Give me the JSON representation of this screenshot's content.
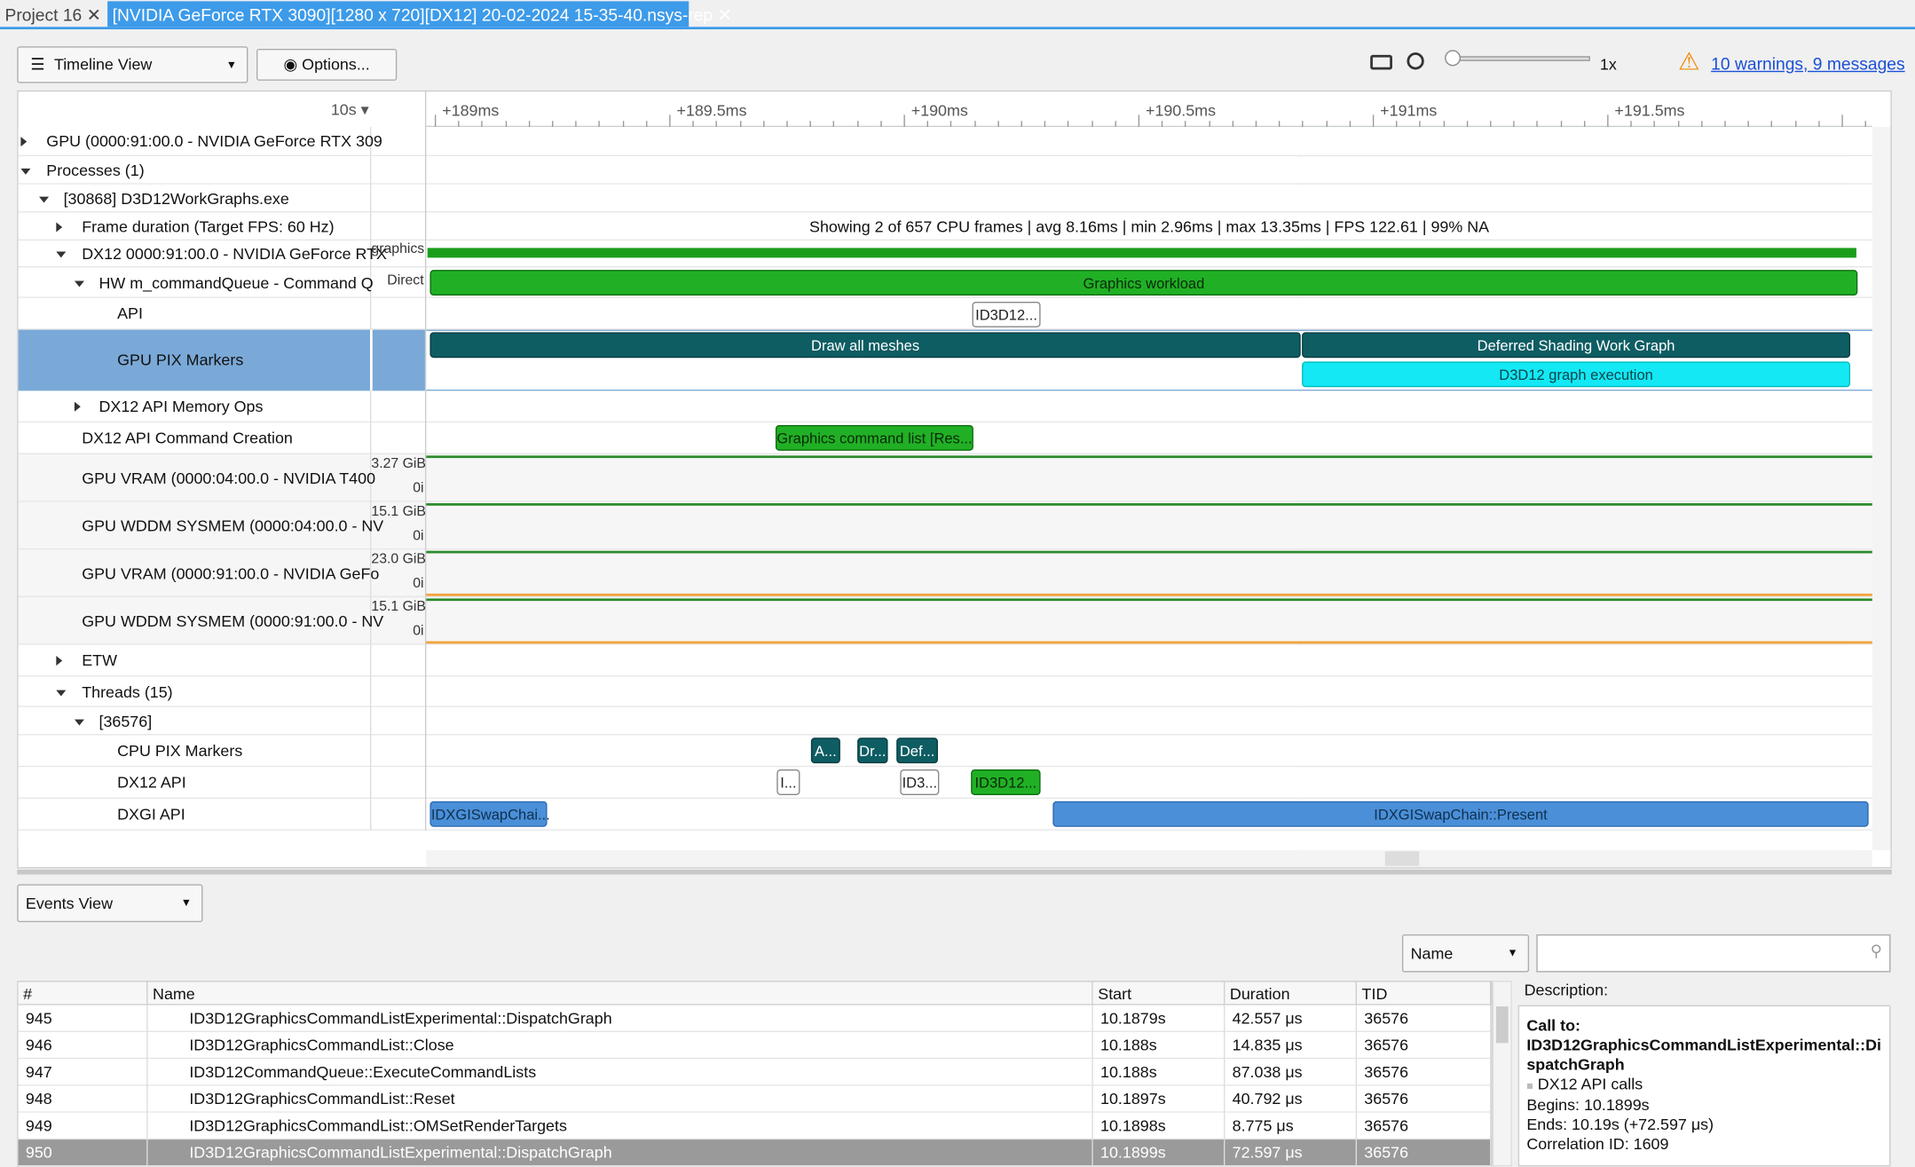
{
  "tabs": [
    "Project 16",
    "[NVIDIA GeForce RTX 3090][1280 x 720][DX12] 20-02-2024 15-35-40.nsys-rep"
  ],
  "toolbar": {
    "view": "Timeline View",
    "options": "Options...",
    "zoom": "1x",
    "warnings": "10 warnings, 9 messages"
  },
  "timeline": {
    "scale": "10s",
    "ruler": [
      "+189ms",
      "+189.5ms",
      "+190ms",
      "+190.5ms",
      "+191ms",
      "+191.5ms"
    ],
    "rows": [
      "GPU (0000:91:00.0 - NVIDIA GeForce RTX 309",
      "Processes (1)",
      "[30868] D3D12WorkGraphs.exe",
      "Frame duration (Target FPS: 60 Hz)",
      "DX12 0000:91:00.0 - NVIDIA GeForce RTX",
      "HW m_commandQueue - Command Q",
      "API",
      "GPU PIX Markers",
      "DX12 API Memory Ops",
      "DX12 API Command Creation",
      "GPU VRAM (0000:04:00.0 - NVIDIA T400",
      "GPU WDDM SYSMEM (0000:04:00.0 - NV",
      "GPU VRAM (0000:91:00.0 - NVIDIA GeFo",
      "GPU WDDM SYSMEM (0000:91:00.0 - NV",
      "ETW",
      "Threads (15)",
      "[36576]",
      "CPU PIX Markers",
      "DX12 API",
      "DXGI API"
    ],
    "side_labels": [
      "graphics",
      "Direct",
      "3.27 GiB",
      "0i",
      "15.1 GiB",
      "0i",
      "23.0 GiB",
      "0i",
      "15.1 GiB",
      "0i"
    ],
    "frame_summary": "Showing 2 of 657 CPU frames | avg 8.16ms | min 2.96ms | max 13.35ms | FPS 122.61 | 99% NA",
    "ranges": [
      "Graphics workload",
      "ID3D12...",
      "Draw all meshes",
      "Deferred Shading Work Graph",
      "D3D12 graph execution",
      "Graphics command list [Res...",
      "A...",
      "Dr...",
      "Def...",
      "I...",
      "ID3...",
      "ID3D12...",
      "IDXGISwapChai...",
      "IDXGISwapChain::Present"
    ]
  },
  "events": {
    "view": "Events View",
    "filter": "Name",
    "columns": [
      "#",
      "Name",
      "Start",
      "Duration",
      "TID"
    ],
    "rows": [
      [
        "945",
        "ID3D12GraphicsCommandListExperimental::DispatchGraph",
        "10.1879s",
        "42.557 μs",
        "36576"
      ],
      [
        "946",
        "ID3D12GraphicsCommandList::Close",
        "10.188s",
        "14.835 μs",
        "36576"
      ],
      [
        "947",
        "ID3D12CommandQueue::ExecuteCommandLists",
        "10.188s",
        "87.038 μs",
        "36576"
      ],
      [
        "948",
        "ID3D12GraphicsCommandList::Reset",
        "10.1897s",
        "40.792 μs",
        "36576"
      ],
      [
        "949",
        "ID3D12GraphicsCommandList::OMSetRenderTargets",
        "10.1898s",
        "8.775 μs",
        "36576"
      ],
      [
        "950",
        "ID3D12GraphicsCommandListExperimental::DispatchGraph",
        "10.1899s",
        "72.597 μs",
        "36576"
      ]
    ],
    "description": {
      "heading": "Description:",
      "call": "Call to:",
      "name": "ID3D12GraphicsCommandListExperimental::DispatchGraph",
      "category": "DX12 API calls",
      "begins": "Begins: 10.1899s",
      "ends": "Ends: 10.19s (+72.597 μs)",
      "correlation": "Correlation ID: 1609"
    }
  }
}
